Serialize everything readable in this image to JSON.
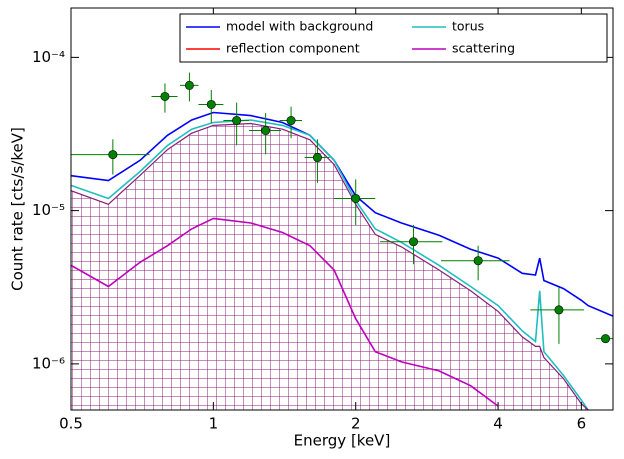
{
  "chart_data": {
    "type": "line",
    "xlabel": "Energy [keV]",
    "ylabel": "Count rate [cts/s/keV]",
    "xscale": "log",
    "yscale": "log",
    "xlim": [
      0.5,
      7
    ],
    "ylim": [
      5e-07,
      0.00021
    ],
    "xticks": [
      0.5,
      1,
      2,
      4,
      6
    ],
    "yticks": [
      {
        "value": 1e-06,
        "label": "10⁻⁶"
      },
      {
        "value": 1e-05,
        "label": "10⁻⁵"
      },
      {
        "value": 0.0001,
        "label": "10⁻⁴"
      }
    ],
    "legend": "upper right",
    "x": [
      0.5,
      0.6,
      0.7,
      0.8,
      0.9,
      1.0,
      1.2,
      1.4,
      1.6,
      1.8,
      2.0,
      2.2,
      2.5,
      3,
      3.5,
      4,
      4.5,
      4.8,
      4.9,
      5.0,
      5.5,
      6,
      6.2,
      7
    ],
    "series": [
      {
        "name": "model with background",
        "color": "#0000ff",
        "values": [
          1.69e-05,
          1.57e-05,
          2.13e-05,
          3.1e-05,
          3.9e-05,
          4.37e-05,
          4.17e-05,
          3.76e-05,
          3.1e-05,
          2.13e-05,
          1.25e-05,
          9.7e-06,
          8.3e-06,
          6.9e-06,
          5.6e-06,
          4.9e-06,
          3.9e-06,
          3.8e-06,
          4.9e-06,
          3.5e-06,
          3.1e-06,
          2.6e-06,
          2.4e-06,
          2.05e-06
        ]
      },
      {
        "name": "torus",
        "color": "#1fbfbf",
        "values": [
          1.46e-05,
          1.2e-05,
          1.8e-05,
          2.66e-05,
          3.4e-05,
          3.76e-05,
          3.9e-05,
          3.6e-05,
          3.1e-05,
          2.13e-05,
          1.16e-05,
          7.6e-06,
          6.2e-06,
          4.4e-06,
          3.2e-06,
          2.4e-06,
          1.64e-06,
          1.4e-06,
          3e-06,
          1.2e-06,
          8.4e-07,
          5.8e-07,
          5e-07,
          null
        ]
      },
      {
        "name": "reflection component",
        "color": "#ff0000",
        "hatch_color": "#8b1c7a",
        "values": [
          1.35e-05,
          1.1e-05,
          1.7e-05,
          2.5e-05,
          3.2e-05,
          3.6e-05,
          3.7e-05,
          3.4e-05,
          2.9e-05,
          2e-05,
          1.1e-05,
          7e-06,
          5.8e-06,
          4.1e-06,
          3e-06,
          2.2e-06,
          1.5e-06,
          1.3e-06,
          1.3e-06,
          1.1e-06,
          8e-07,
          5.5e-07,
          5e-07,
          null
        ]
      },
      {
        "name": "scattering",
        "color": "#bf00bf",
        "values": [
          4.4e-06,
          3.2e-06,
          4.6e-06,
          5.9e-06,
          7.6e-06,
          8.9e-06,
          8.3e-06,
          7.2e-06,
          5.9e-06,
          4.1e-06,
          1.97e-06,
          1.2e-06,
          1.03e-06,
          9e-07,
          7.2e-07,
          5.3e-07,
          null,
          null,
          null,
          null,
          null,
          null,
          null,
          null
        ]
      }
    ],
    "points": {
      "color": "#008000",
      "x": [
        0.613,
        0.79,
        0.89,
        0.99,
        1.12,
        1.29,
        1.46,
        1.66,
        2.0,
        2.65,
        3.63,
        5.38,
        6.75
      ],
      "y": [
        2.32e-05,
        5.56e-05,
        6.56e-05,
        4.93e-05,
        3.87e-05,
        3.33e-05,
        3.87e-05,
        2.22e-05,
        1.2e-05,
        6.27e-06,
        4.71e-06,
        2.25e-06,
        1.46e-06
      ],
      "xerr": [
        0.12,
        0.05,
        0.04,
        0.06,
        0.07,
        0.1,
        0.08,
        0.1,
        0.2,
        0.4,
        0.6,
        0.7,
        0.3
      ],
      "yerr": [
        6e-06,
        1.2e-05,
        1.4e-05,
        1.2e-05,
        1.2e-05,
        1e-05,
        9e-06,
        7e-06,
        4e-06,
        1.8e-06,
        1.2e-06,
        9e-07,
        0
      ]
    }
  }
}
